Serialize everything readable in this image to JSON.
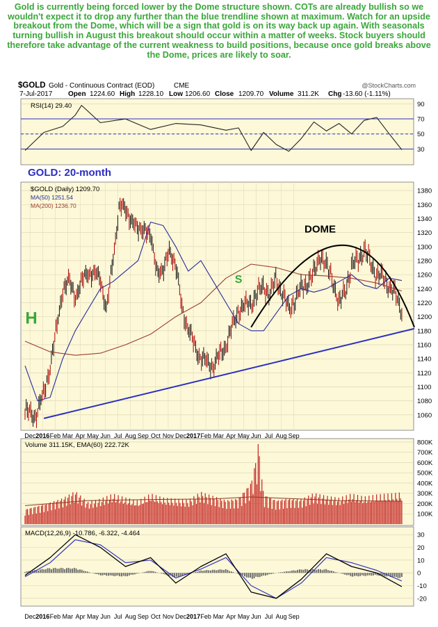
{
  "commentary": "Gold is currently being forced lower by the Dome structure shown. COTs are already bullish so we wouldn't expect it to drop any further than the blue trendline shown at maximum. Watch for an upside breakout from the Dome, which will be a sign that gold is on its way back up again. With seasonals turning bullish in August this breakout should occur within a matter of weeks. Stock buyers should therefore take advantage of the current weakness to build positions, because once gold breaks above the Dome, prices are likely to soar.",
  "header": {
    "symbol": "$GOLD",
    "name": "Gold - Continuous Contract (EOD)",
    "exchange": "CME",
    "source": "@StockCharts.com",
    "date": "7-Jul-2017",
    "open_label": "Open",
    "open": "1224.60",
    "high_label": "High",
    "high": "1228.10",
    "low_label": "Low",
    "low": "1206.60",
    "close_label": "Close",
    "close": "1209.70",
    "volume_label": "Volume",
    "volume": "311.2K",
    "chg_label": "Chg",
    "chg": "-13.60 (-1.11%)"
  },
  "colors": {
    "panel_bg": "#fcf8d8",
    "text_green": "#3aa63a",
    "trendline_blue": "#2b2ec0",
    "ma50": "#2a2a9a",
    "ma200": "#9c3b2f",
    "up_bar": "#111111",
    "down_bar": "#b00000",
    "volume_bar": "#c42020"
  },
  "chart_data": [
    {
      "type": "line",
      "panel": "rsi",
      "legend": "RSI(14) 29.40",
      "ylim": [
        10,
        95
      ],
      "yticks": [
        90,
        70,
        50,
        30
      ],
      "reference_lines": [
        70,
        50,
        30
      ],
      "series": [
        {
          "name": "RSI(14)",
          "x": [
            0,
            1.5,
            3,
            4,
            4.5,
            6,
            8,
            10,
            12,
            14,
            16,
            17,
            18,
            19,
            20,
            21,
            22,
            23,
            24,
            25,
            26,
            27,
            28,
            29,
            30
          ],
          "values": [
            28,
            52,
            60,
            75,
            88,
            65,
            70,
            56,
            64,
            62,
            55,
            58,
            28,
            52,
            36,
            27,
            44,
            66,
            54,
            64,
            50,
            68,
            72,
            50,
            29
          ]
        }
      ]
    },
    {
      "type": "line",
      "panel": "price",
      "title": "GOLD: 20-month",
      "legend": [
        "$GOLD (Daily) 1209.70",
        "MA(50) 1251.54",
        "MA(200) 1236.70"
      ],
      "ylim": [
        1040,
        1390
      ],
      "yticks": [
        1380,
        1360,
        1340,
        1320,
        1300,
        1280,
        1260,
        1240,
        1220,
        1200,
        1180,
        1160,
        1140,
        1120,
        1100,
        1080,
        1060
      ],
      "x_tick_labels": [
        "Dec",
        "2016",
        "Feb",
        "Mar",
        "Apr",
        "May",
        "Jun",
        "Jul",
        "Aug",
        "Sep",
        "Oct",
        "Nov",
        "Dec",
        "2017",
        "Feb",
        "Mar",
        "Apr",
        "May",
        "Jun",
        "Jul",
        "Aug",
        "Sep"
      ],
      "series": [
        {
          "name": "$GOLD (Daily)",
          "x": [
            0,
            0.8,
            1.5,
            2,
            2.5,
            3,
            3.5,
            4,
            5,
            6,
            6.5,
            7,
            7.5,
            8,
            8.5,
            9,
            9.5,
            10,
            10.5,
            11,
            11.5,
            12,
            12.5,
            13,
            14,
            15,
            16,
            16.5,
            17,
            18,
            19,
            19.5,
            20,
            21,
            22,
            23,
            23.5,
            24,
            24.5,
            25,
            25.5,
            26,
            27,
            28,
            28.5,
            29,
            29.5,
            30
          ],
          "values": [
            1065,
            1058,
            1090,
            1130,
            1180,
            1240,
            1250,
            1230,
            1265,
            1255,
            1210,
            1280,
            1360,
            1350,
            1340,
            1320,
            1330,
            1310,
            1270,
            1260,
            1300,
            1270,
            1215,
            1180,
            1140,
            1130,
            1160,
            1185,
            1210,
            1220,
            1245,
            1230,
            1255,
            1210,
            1240,
            1260,
            1290,
            1270,
            1255,
            1215,
            1240,
            1270,
            1295,
            1260,
            1255,
            1245,
            1230,
            1209.7
          ]
        },
        {
          "name": "MA(50)",
          "x": [
            0,
            1,
            2,
            3,
            4,
            5,
            6,
            7,
            8,
            9,
            10,
            11,
            12,
            13,
            14,
            15,
            16,
            17,
            18,
            19,
            20,
            21,
            22,
            23,
            24,
            25,
            26,
            27,
            28,
            29,
            30
          ],
          "values": [
            1130,
            1080,
            1085,
            1140,
            1180,
            1210,
            1240,
            1250,
            1265,
            1280,
            1335,
            1330,
            1300,
            1265,
            1280,
            1250,
            1220,
            1190,
            1180,
            1180,
            1205,
            1230,
            1240,
            1235,
            1240,
            1250,
            1260,
            1245,
            1240,
            1255,
            1251.54
          ]
        },
        {
          "name": "MA(200)",
          "x": [
            0,
            2,
            4,
            6,
            8,
            10,
            12,
            14,
            16,
            18,
            20,
            22,
            24,
            26,
            28,
            30
          ],
          "values": [
            1165,
            1150,
            1145,
            1148,
            1160,
            1175,
            1200,
            1220,
            1255,
            1275,
            1270,
            1260,
            1258,
            1255,
            1248,
            1236.7
          ]
        }
      ],
      "trendline": {
        "x": [
          1.5,
          31
        ],
        "values": [
          1055,
          1183
        ]
      },
      "dome": {
        "x": [
          18,
          26,
          31
        ],
        "values": [
          1185,
          1302,
          1185
        ]
      },
      "annotations": [
        {
          "text": "H",
          "x": 0.5,
          "y": 1190
        },
        {
          "text": "S",
          "x": 17,
          "y": 1248
        },
        {
          "text": "DOME",
          "x": 23.5,
          "y": 1320
        }
      ]
    },
    {
      "type": "bar",
      "panel": "volume",
      "legend": "Volume 311.15K, EMA(60) 222.72K",
      "ylim": [
        0,
        820
      ],
      "yticks": [
        "800K",
        "700K",
        "600K",
        "500K",
        "400K",
        "300K",
        "200K",
        "100K"
      ],
      "series": [
        {
          "name": "Volume",
          "x": [
            0,
            1.5,
            3,
            4,
            5,
            6,
            7,
            8,
            9,
            10,
            11,
            12,
            13,
            14,
            15,
            16,
            17,
            18,
            18.6,
            19,
            20,
            21,
            22,
            23,
            24,
            25,
            26,
            27,
            28,
            29,
            30
          ],
          "values": [
            150,
            200,
            260,
            330,
            220,
            250,
            300,
            260,
            230,
            300,
            260,
            250,
            240,
            320,
            280,
            240,
            260,
            420,
            780,
            300,
            240,
            260,
            250,
            310,
            280,
            260,
            300,
            270,
            290,
            300,
            311.15
          ]
        },
        {
          "name": "EMA(60)",
          "x": [
            0,
            5,
            10,
            15,
            18,
            20,
            25,
            30
          ],
          "values": [
            180,
            230,
            240,
            245,
            265,
            255,
            230,
            222.72
          ]
        }
      ]
    },
    {
      "type": "line",
      "panel": "macd",
      "legend": "MACD(12,26,9) -10.786, -6.322, -4.464",
      "ylim": [
        -25,
        35
      ],
      "yticks": [
        30,
        20,
        10,
        0,
        -10,
        -20
      ],
      "series": [
        {
          "name": "MACD",
          "x": [
            0,
            2,
            4,
            6,
            8,
            10,
            12,
            14,
            16,
            18,
            20,
            22,
            24,
            26,
            28,
            30
          ],
          "values": [
            -2,
            12,
            30,
            20,
            5,
            12,
            -8,
            5,
            15,
            -15,
            -20,
            -5,
            15,
            5,
            0,
            -10.786
          ]
        },
        {
          "name": "Signal",
          "x": [
            0,
            2,
            4,
            6,
            8,
            10,
            12,
            14,
            16,
            18,
            20,
            22,
            24,
            26,
            28,
            30
          ],
          "values": [
            -3,
            8,
            26,
            22,
            8,
            10,
            -4,
            3,
            12,
            -10,
            -20,
            -8,
            12,
            8,
            2,
            -6.322
          ]
        },
        {
          "name": "Histogram",
          "x": [
            0,
            2,
            4,
            6,
            8,
            10,
            12,
            14,
            16,
            18,
            20,
            22,
            24,
            26,
            28,
            30
          ],
          "values": [
            1,
            4,
            4,
            -2,
            -3,
            2,
            -4,
            2,
            3,
            -5,
            0,
            3,
            3,
            -3,
            -2,
            -4.464
          ]
        }
      ]
    }
  ]
}
